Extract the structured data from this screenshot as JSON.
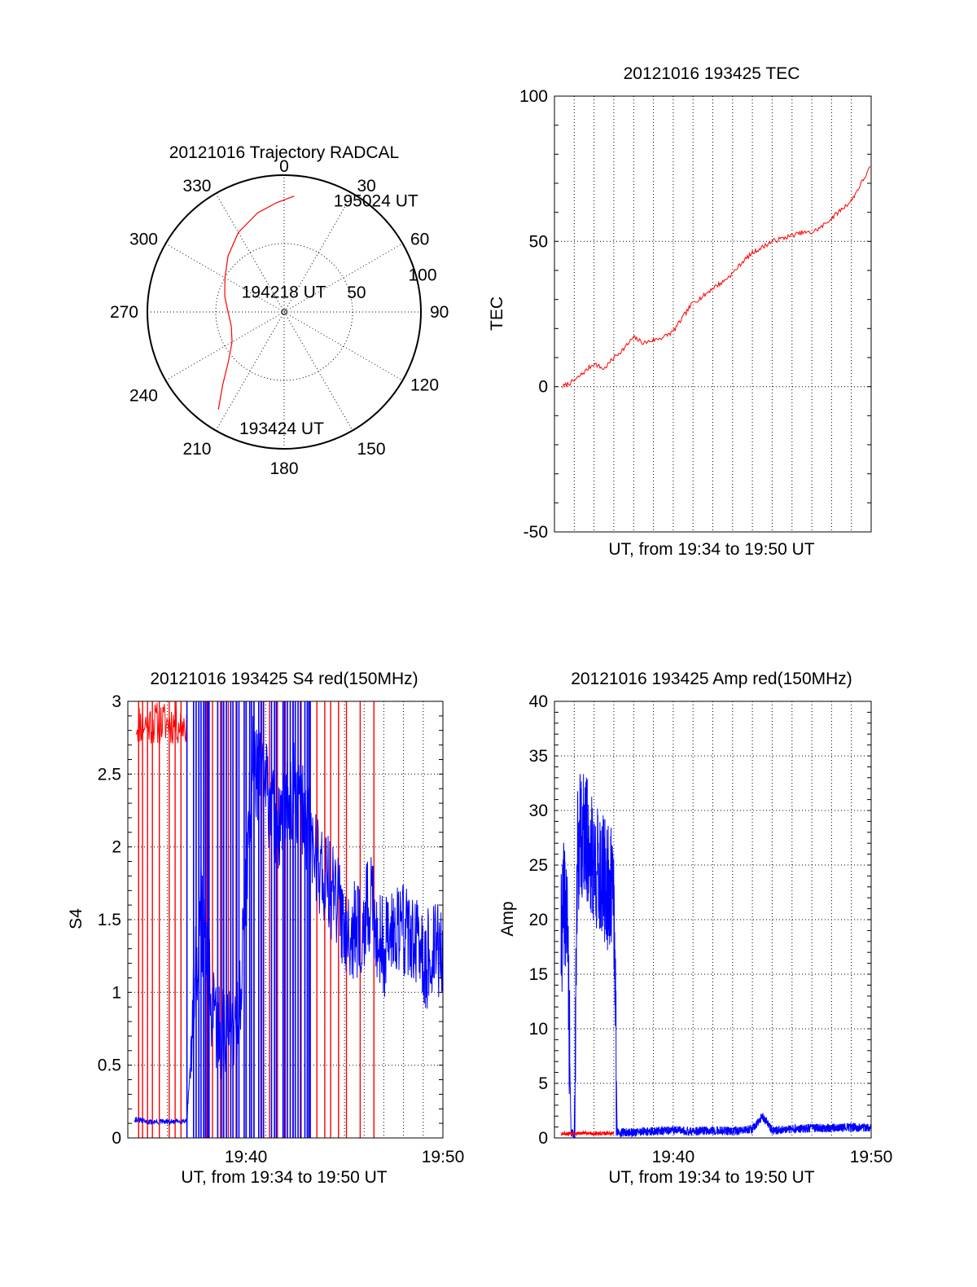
{
  "colors": {
    "red": "#ff0000",
    "blue": "#0000ff",
    "axis": "#000000"
  },
  "chart_data": [
    {
      "type": "polar",
      "title": "20121016 Trajectory RADCAL",
      "angle_ticks": [
        "0",
        "30",
        "60",
        "90",
        "120",
        "150",
        "180",
        "210",
        "240",
        "270",
        "300",
        "330"
      ],
      "radial_ticks": [
        {
          "value": 50,
          "label": "50"
        },
        {
          "value": 100,
          "label": "100"
        }
      ],
      "rlim": [
        0,
        100
      ],
      "grid": true,
      "series": [
        {
          "color": "#ff0000",
          "points": [
            {
              "az": 214,
              "r": 86
            },
            {
              "az": 220,
              "r": 70
            },
            {
              "az": 228,
              "r": 55
            },
            {
              "az": 240,
              "r": 44
            },
            {
              "az": 255,
              "r": 40
            },
            {
              "az": 270,
              "r": 41
            },
            {
              "az": 285,
              "r": 45
            },
            {
              "az": 300,
              "r": 50
            },
            {
              "az": 315,
              "r": 58
            },
            {
              "az": 330,
              "r": 67
            },
            {
              "az": 345,
              "r": 75
            },
            {
              "az": 356,
              "r": 80
            },
            {
              "az": 5,
              "r": 85
            }
          ]
        }
      ],
      "annotations": [
        {
          "text": "195024 UT",
          "az": 24,
          "r": 89
        },
        {
          "text": "194218 UT",
          "az": 358,
          "r": 5
        },
        {
          "text": "193424 UT",
          "az": 180,
          "r": 85
        }
      ]
    },
    {
      "type": "line",
      "title": "20121016 193425 TEC",
      "xlabel": "UT, from 19:34 to 19:50 UT",
      "ylabel": "TEC",
      "xlim": [
        "19:34",
        "19:50"
      ],
      "ylim": [
        -50,
        100
      ],
      "yticks": [
        "-50",
        "0",
        "50",
        "100"
      ],
      "grid": true,
      "series": [
        {
          "color": "#ff0000",
          "x": [
            "19:34:25",
            "19:35:00",
            "19:35:30",
            "19:36:00",
            "19:36:30",
            "19:37:00",
            "19:37:30",
            "19:38:00",
            "19:38:30",
            "19:39:00",
            "19:39:30",
            "19:40:00",
            "19:40:30",
            "19:41:00",
            "19:41:30",
            "19:42:00",
            "19:42:30",
            "19:43:00",
            "19:43:30",
            "19:44:00",
            "19:44:30",
            "19:45:00",
            "19:45:30",
            "19:46:00",
            "19:46:30",
            "19:47:00",
            "19:47:30",
            "19:48:00",
            "19:48:30",
            "19:49:00",
            "19:49:30",
            "19:50:00"
          ],
          "values": [
            0,
            2,
            5,
            8,
            6,
            10,
            13,
            17,
            15,
            16,
            17,
            19,
            24,
            29,
            31,
            34,
            36,
            39,
            43,
            46,
            48,
            50,
            51,
            52,
            53,
            53,
            55,
            58,
            61,
            64,
            70,
            76
          ]
        }
      ]
    },
    {
      "type": "line",
      "title": "20121016 193425 S4 red(150MHz)",
      "xlabel": "UT, from 19:34 to 19:50 UT",
      "ylabel": "S4",
      "xlim": [
        "19:34",
        "19:50"
      ],
      "ylim": [
        0,
        3
      ],
      "xticks": [
        "19:40",
        "19:50"
      ],
      "yticks": [
        "0",
        "0.5",
        "1",
        "1.5",
        "2",
        "2.5",
        "3"
      ],
      "grid": true,
      "series": [
        {
          "color": "#ff0000",
          "spike_times": [
            "19:34:33",
            "19:34:45",
            "19:35:00",
            "19:35:15",
            "19:35:36",
            "19:36:06",
            "19:36:24",
            "19:36:42",
            "19:37:36",
            "19:38:00",
            "19:38:18",
            "19:38:42",
            "19:39:06",
            "19:39:30",
            "19:40:00",
            "19:40:24",
            "19:40:48",
            "19:41:12",
            "19:41:36",
            "19:42:00",
            "19:42:24",
            "19:42:48",
            "19:43:12",
            "19:43:36",
            "19:44:00",
            "19:44:18",
            "19:44:42",
            "19:45:06",
            "19:45:48",
            "19:46:30"
          ],
          "baseline": 2.7
        },
        {
          "color": "#0000ff",
          "x": [
            "19:34:20",
            "19:34:40",
            "19:35:00",
            "19:35:40",
            "19:36:20",
            "19:37:00",
            "19:37:40",
            "19:38:20",
            "19:39:00",
            "19:39:40",
            "19:40:20",
            "19:41:00",
            "19:41:40",
            "19:42:20",
            "19:43:00",
            "19:43:40",
            "19:44:20",
            "19:45:00",
            "19:45:40",
            "19:46:20",
            "19:47:00",
            "19:47:40",
            "19:48:20",
            "19:49:00",
            "19:49:40",
            "19:50:00"
          ],
          "values": [
            0.13,
            0.12,
            0.11,
            0.11,
            0.11,
            0.12,
            1.6,
            0.8,
            0.7,
            0.85,
            2.6,
            2.4,
            2.1,
            2.4,
            2.2,
            1.9,
            1.7,
            1.5,
            1.4,
            1.6,
            1.3,
            1.5,
            1.4,
            1.2,
            1.3,
            1.3
          ]
        }
      ]
    },
    {
      "type": "line",
      "title": "20121016 193425 Amp red(150MHz)",
      "xlabel": "UT, from 19:34 to 19:50 UT",
      "ylabel": "Amp",
      "xlim": [
        "19:34",
        "19:50"
      ],
      "ylim": [
        0,
        40
      ],
      "xticks": [
        "19:40",
        "19:50"
      ],
      "yticks": [
        "0",
        "5",
        "10",
        "15",
        "20",
        "25",
        "30",
        "35",
        "40"
      ],
      "grid": true,
      "series": [
        {
          "color": "#0000ff",
          "x": [
            "19:34:20",
            "19:34:30",
            "19:34:40",
            "19:34:50",
            "19:35:00",
            "19:35:10",
            "19:35:20",
            "19:35:40",
            "19:36:00",
            "19:36:20",
            "19:36:40",
            "19:37:00",
            "19:37:10",
            "19:37:20",
            "19:38:00",
            "19:39:00",
            "19:40:00",
            "19:41:00",
            "19:42:00",
            "19:43:00",
            "19:44:00",
            "19:44:30",
            "19:45:00",
            "19:46:00",
            "19:47:00",
            "19:48:00",
            "19:49:00",
            "19:50:00"
          ],
          "values": [
            18,
            22,
            19,
            0.5,
            0.3,
            26,
            28,
            27,
            25,
            24,
            23,
            22,
            0.6,
            0.5,
            0.5,
            0.6,
            0.7,
            0.6,
            0.7,
            0.6,
            0.8,
            2,
            0.7,
            0.8,
            0.9,
            0.9,
            1,
            0.9
          ]
        },
        {
          "color": "#ff0000",
          "x": [
            "19:34:20",
            "19:35:00",
            "19:36:00",
            "19:37:00"
          ],
          "values": [
            0.4,
            0.45,
            0.4,
            0.4
          ]
        }
      ]
    }
  ]
}
